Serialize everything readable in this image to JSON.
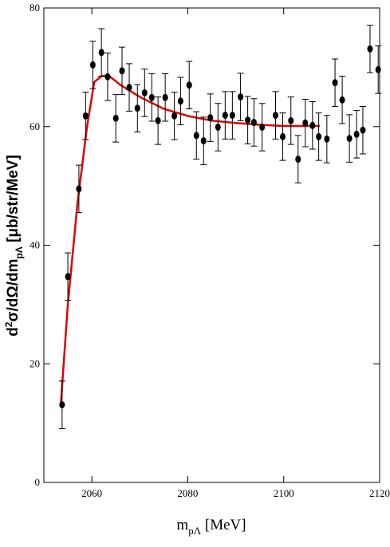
{
  "chart_data": {
    "type": "scatter",
    "x_label": {
      "main": "m",
      "sub": "pΛ",
      "rest": " [MeV]"
    },
    "y_label": {
      "main": "d",
      "sup": "2",
      "mid": "σ/dΩ/dm",
      "sub": "pΛ",
      "rest": " [μb/str/MeV]"
    },
    "xlim": [
      2050,
      2120
    ],
    "xticks": [
      2060,
      2080,
      2100,
      2120
    ],
    "ylim": [
      0,
      80
    ],
    "yticks": [
      0,
      20,
      40,
      60,
      80
    ],
    "points": {
      "color": "#000000",
      "x": [
        2053.8,
        2055,
        2057.3,
        2058.7,
        2060.2,
        2062,
        2063.3,
        2065,
        2066.3,
        2067.8,
        2069.5,
        2071,
        2072.5,
        2073.8,
        2075.3,
        2077.2,
        2078.5,
        2080.3,
        2081.8,
        2083.3,
        2084.7,
        2086.3,
        2087.8,
        2089.3,
        2091,
        2092.5,
        2093.8,
        2095.5,
        2098.3,
        2099.8,
        2101.5,
        2103,
        2104.5,
        2106,
        2107.3,
        2109,
        2110.7,
        2112.2,
        2113.7,
        2115.2,
        2116.5,
        2118,
        2119.7
      ],
      "values": [
        13.1,
        34.7,
        49.5,
        61.8,
        70.4,
        72.5,
        68.4,
        61.4,
        69.4,
        66.6,
        63.1,
        65.7,
        64.9,
        61,
        64.9,
        61.8,
        64.3,
        67,
        58.5,
        57.6,
        61.5,
        59.9,
        61.9,
        61.9,
        65,
        61.1,
        60.7,
        59.9,
        61.9,
        58.3,
        61,
        54.5,
        60.6,
        60.2,
        58.3,
        57.9,
        67.4,
        64.5,
        58,
        58.7,
        59.4,
        73.1,
        69.6
      ],
      "errors": [
        4,
        4,
        4,
        4,
        4,
        4,
        4,
        4,
        4,
        4,
        4,
        4,
        4,
        4,
        4,
        4,
        4,
        4,
        4,
        4,
        4,
        4,
        4,
        4,
        4,
        4,
        4,
        4,
        4,
        4,
        4,
        4,
        4,
        4,
        4,
        4,
        4,
        4,
        4,
        4,
        4,
        4,
        4
      ]
    },
    "fit": {
      "color": "#e00000",
      "x": [
        2053.5,
        2055,
        2057,
        2059,
        2060.5,
        2062,
        2063.5,
        2066,
        2070,
        2075,
        2080,
        2085,
        2090,
        2095,
        2100,
        2107.5
      ],
      "values": [
        12.8,
        30,
        47,
        60,
        67.5,
        68.5,
        68.6,
        67,
        65,
        63,
        61.8,
        61,
        60.6,
        60.3,
        60.1,
        60.1
      ]
    }
  }
}
